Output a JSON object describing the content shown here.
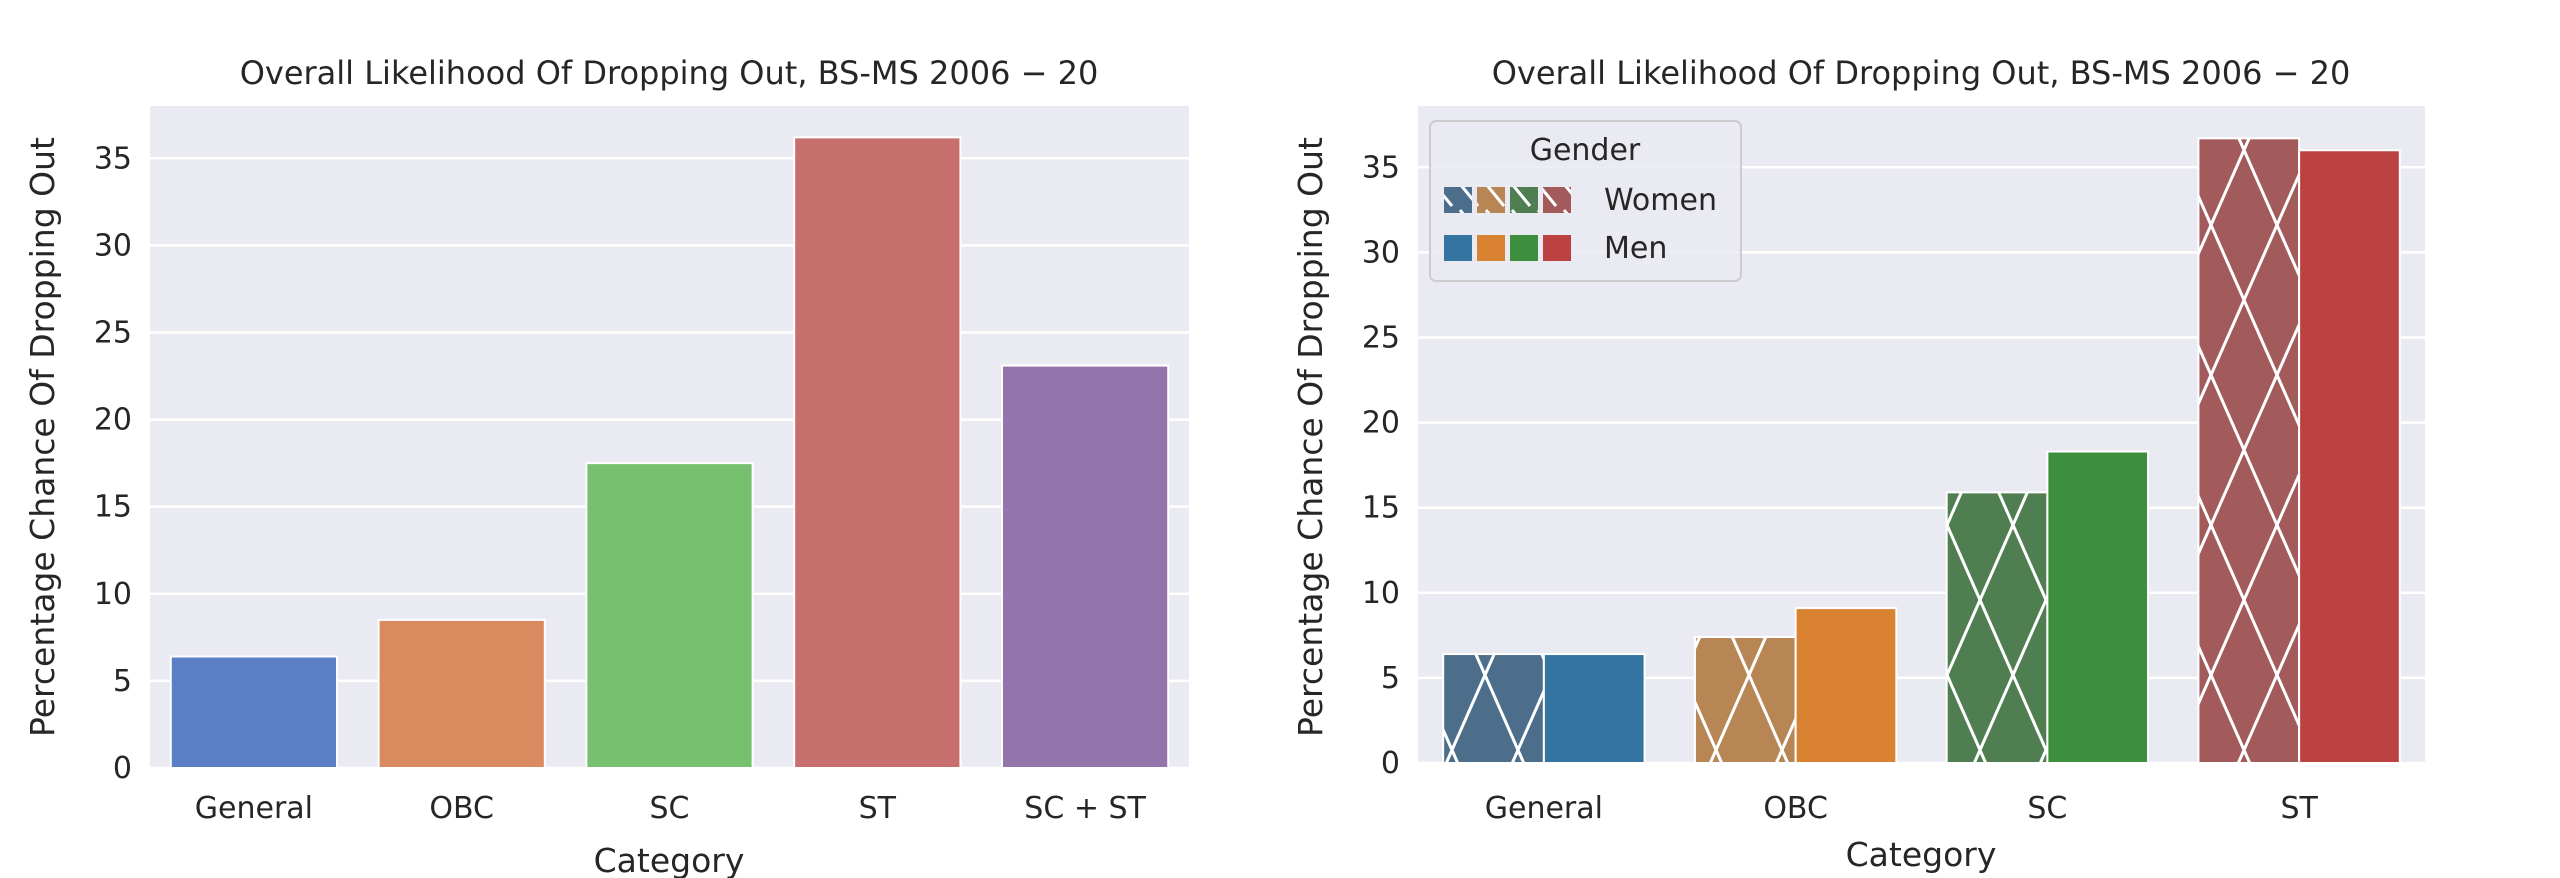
{
  "chart_data": [
    {
      "type": "bar",
      "title": "Overall Likelihood Of Dropping Out, BS-MS 2006 − 20",
      "xlabel": "Category",
      "ylabel": "Percentage Chance Of Dropping Out",
      "categories": [
        "General",
        "OBC",
        "SC",
        "ST",
        "SC + ST"
      ],
      "values": [
        6.4,
        8.5,
        17.5,
        36.2,
        23.1
      ],
      "colors": [
        "#5b7fc4",
        "#d98b5f",
        "#76c06f",
        "#c66f6d",
        "#9374ab"
      ],
      "ylim": [
        0,
        38
      ],
      "yticks": [
        0,
        5,
        10,
        15,
        20,
        25,
        30,
        35
      ],
      "grid": true,
      "background": "#eaeaf2"
    },
    {
      "type": "bar",
      "title": "Overall Likelihood Of Dropping Out, BS-MS 2006 − 20",
      "xlabel": "Category",
      "ylabel": "Percentage Chance Of Dropping Out",
      "categories": [
        "General",
        "OBC",
        "SC",
        "ST"
      ],
      "series": [
        {
          "name": "Women",
          "values": [
            6.4,
            7.4,
            15.9,
            36.7
          ],
          "colors": [
            "#4c6e8b",
            "#b88655",
            "#4f7f51",
            "#a35a5b"
          ],
          "hatch": "x"
        },
        {
          "name": "Men",
          "values": [
            6.4,
            9.1,
            18.3,
            36.0
          ],
          "colors": [
            "#3574a0",
            "#d98231",
            "#3d8f3d",
            "#bc4242"
          ],
          "hatch": "none"
        }
      ],
      "legend": {
        "title": "Gender",
        "placement": "top-left"
      },
      "ylim": [
        0,
        38.6
      ],
      "yticks": [
        0,
        5,
        10,
        15,
        20,
        25,
        30,
        35
      ],
      "grid": true,
      "background": "#eaeaf2"
    }
  ]
}
